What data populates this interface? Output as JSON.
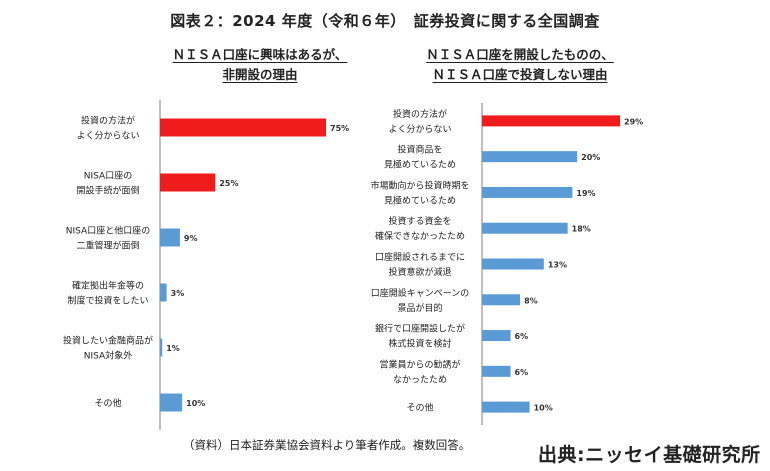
{
  "header": {
    "title": "図表２：2024 年度（令和６年）　証券投資に関する全国調査"
  },
  "colors": {
    "highlight": "#ee1c1c",
    "normal": "#5b9bd5",
    "axis": "#808080"
  },
  "chart_data": [
    {
      "type": "bar",
      "orientation": "horizontal",
      "title_lines": [
        "ＮＩＳＡ口座に興味はあるが、",
        "非開設の理由"
      ],
      "categories": [
        [
          "投資の方法が",
          "よく分からない"
        ],
        [
          "NISA口座の",
          "開設手続が面倒"
        ],
        [
          "NISA口座と他口座の",
          "二重管理が面倒"
        ],
        [
          "確定拠出年金等の",
          "制度で投資をしたい"
        ],
        [
          "投資したい金融商品が",
          "NISA対象外"
        ],
        [
          "その他"
        ]
      ],
      "values": [
        75,
        25,
        9,
        3,
        1,
        10
      ],
      "value_labels": [
        "75%",
        "25%",
        "9%",
        "3%",
        "1%",
        "10%"
      ],
      "highlight": [
        true,
        true,
        false,
        false,
        false,
        false
      ],
      "xlim": [
        0,
        75
      ]
    },
    {
      "type": "bar",
      "orientation": "horizontal",
      "title_lines": [
        "ＮＩＳＡ口座を開設したものの、",
        "ＮＩＳＡ口座で投資しない理由"
      ],
      "categories": [
        [
          "投資の方法が",
          "よく分からない"
        ],
        [
          "投資商品を",
          "見極めているため"
        ],
        [
          "市場動向から投資時期を",
          "見極めているため"
        ],
        [
          "投資する資金を",
          "確保できなかったため"
        ],
        [
          "口座開設されるまでに",
          "投資意欲が減退"
        ],
        [
          "口座開設キャンペーンの",
          "景品が目的"
        ],
        [
          "銀行で口座開設したが",
          "株式投資を検討"
        ],
        [
          "営業員からの勧誘が",
          "なかったため"
        ],
        [
          "その他"
        ]
      ],
      "values": [
        29,
        20,
        19,
        18,
        13,
        8,
        6,
        6,
        10
      ],
      "value_labels": [
        "29%",
        "20%",
        "19%",
        "18%",
        "13%",
        "8%",
        "6%",
        "6%",
        "10%"
      ],
      "highlight": [
        true,
        false,
        false,
        false,
        false,
        false,
        false,
        false,
        false
      ],
      "xlim": [
        0,
        29
      ]
    }
  ],
  "footer": {
    "note": "（資料）日本証券業協会資料より筆者作成。複数回答。",
    "source": "出典:ニッセイ基礎研究所"
  }
}
